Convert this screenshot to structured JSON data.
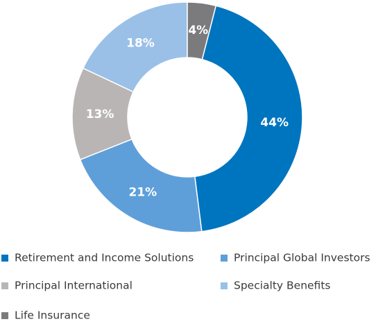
{
  "chart_data": {
    "type": "donut",
    "categories": [
      "Retirement and Income Solutions",
      "Principal Global Investors",
      "Principal International",
      "Specialty Benefits",
      "Life Insurance"
    ],
    "values": [
      44,
      21,
      13,
      18,
      4
    ],
    "value_labels": [
      "44%",
      "21%",
      "13%",
      "18%",
      "4%"
    ],
    "colors": [
      "#0075bf",
      "#5e9fd9",
      "#bab5b5",
      "#9ac0e8",
      "#7b7b7d"
    ]
  }
}
